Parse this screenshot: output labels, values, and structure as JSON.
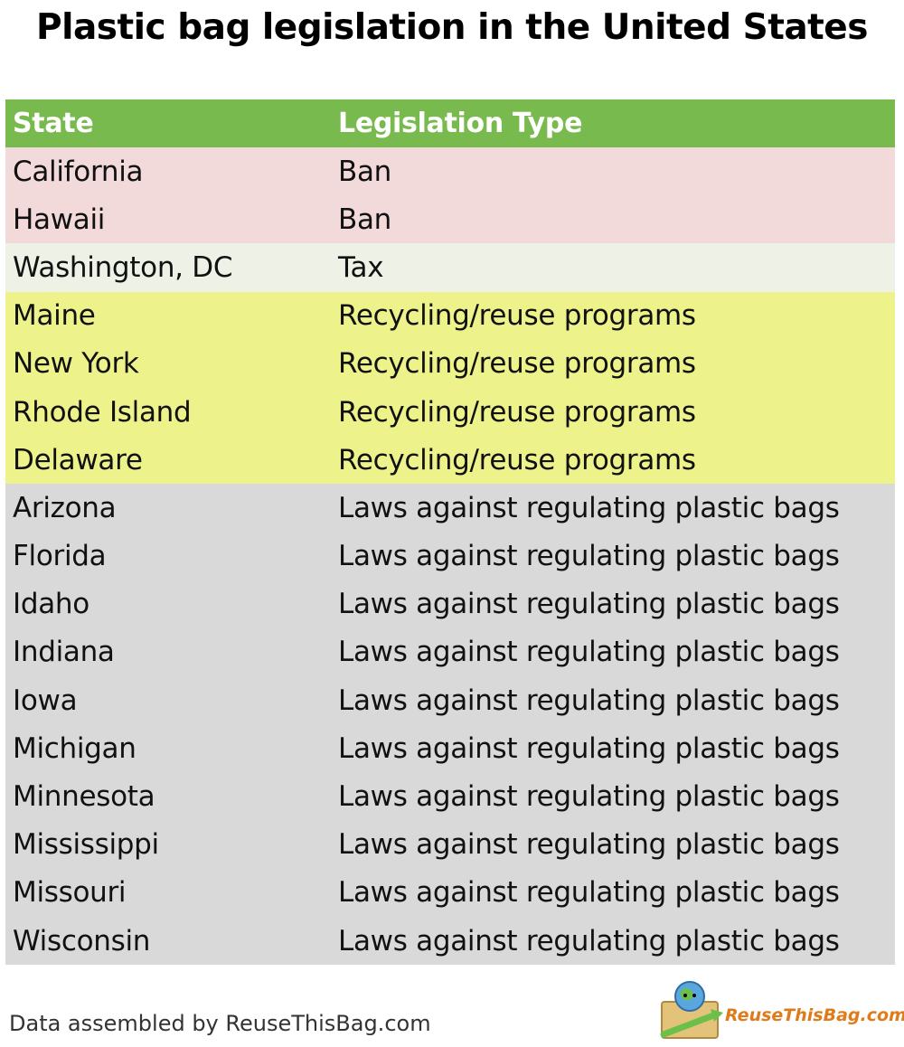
{
  "title": "Plastic bag legislation in the United States",
  "table": {
    "headers": [
      "State",
      "Legislation Type"
    ],
    "rows": [
      {
        "state": "California",
        "type": "Ban",
        "color": "#f3dada"
      },
      {
        "state": "Hawaii",
        "type": "Ban",
        "color": "#f3dada"
      },
      {
        "state": "Washington, DC",
        "type": "Tax",
        "color": "#eef2e6"
      },
      {
        "state": "Maine",
        "type": "Recycling/reuse programs",
        "color": "#eef28a"
      },
      {
        "state": "New York",
        "type": "Recycling/reuse programs",
        "color": "#eef28a"
      },
      {
        "state": "Rhode Island",
        "type": "Recycling/reuse programs",
        "color": "#eef28a"
      },
      {
        "state": "Delaware",
        "type": "Recycling/reuse programs",
        "color": "#eef28a"
      },
      {
        "state": "Arizona",
        "type": "Laws against regulating plastic bags",
        "color": "#d9d9d9"
      },
      {
        "state": "Florida",
        "type": "Laws against regulating plastic bags",
        "color": "#d9d9d9"
      },
      {
        "state": "Idaho",
        "type": "Laws against regulating plastic bags",
        "color": "#d9d9d9"
      },
      {
        "state": "Indiana",
        "type": "Laws against regulating plastic bags",
        "color": "#d9d9d9"
      },
      {
        "state": "Iowa",
        "type": "Laws against regulating plastic bags",
        "color": "#d9d9d9"
      },
      {
        "state": "Michigan",
        "type": "Laws against regulating plastic bags",
        "color": "#d9d9d9"
      },
      {
        "state": "Minnesota",
        "type": "Laws against regulating plastic bags",
        "color": "#d9d9d9"
      },
      {
        "state": "Mississippi",
        "type": "Laws against regulating plastic bags",
        "color": "#d9d9d9"
      },
      {
        "state": "Missouri",
        "type": "Laws against regulating plastic bags",
        "color": "#d9d9d9"
      },
      {
        "state": "Wisconsin",
        "type": "Laws against regulating plastic bags",
        "color": "#d9d9d9"
      }
    ],
    "header_color": "#79ba4f"
  },
  "footer": "Data assembled by ReuseThisBag.com",
  "logo_text": "ReuseThisBag.com"
}
